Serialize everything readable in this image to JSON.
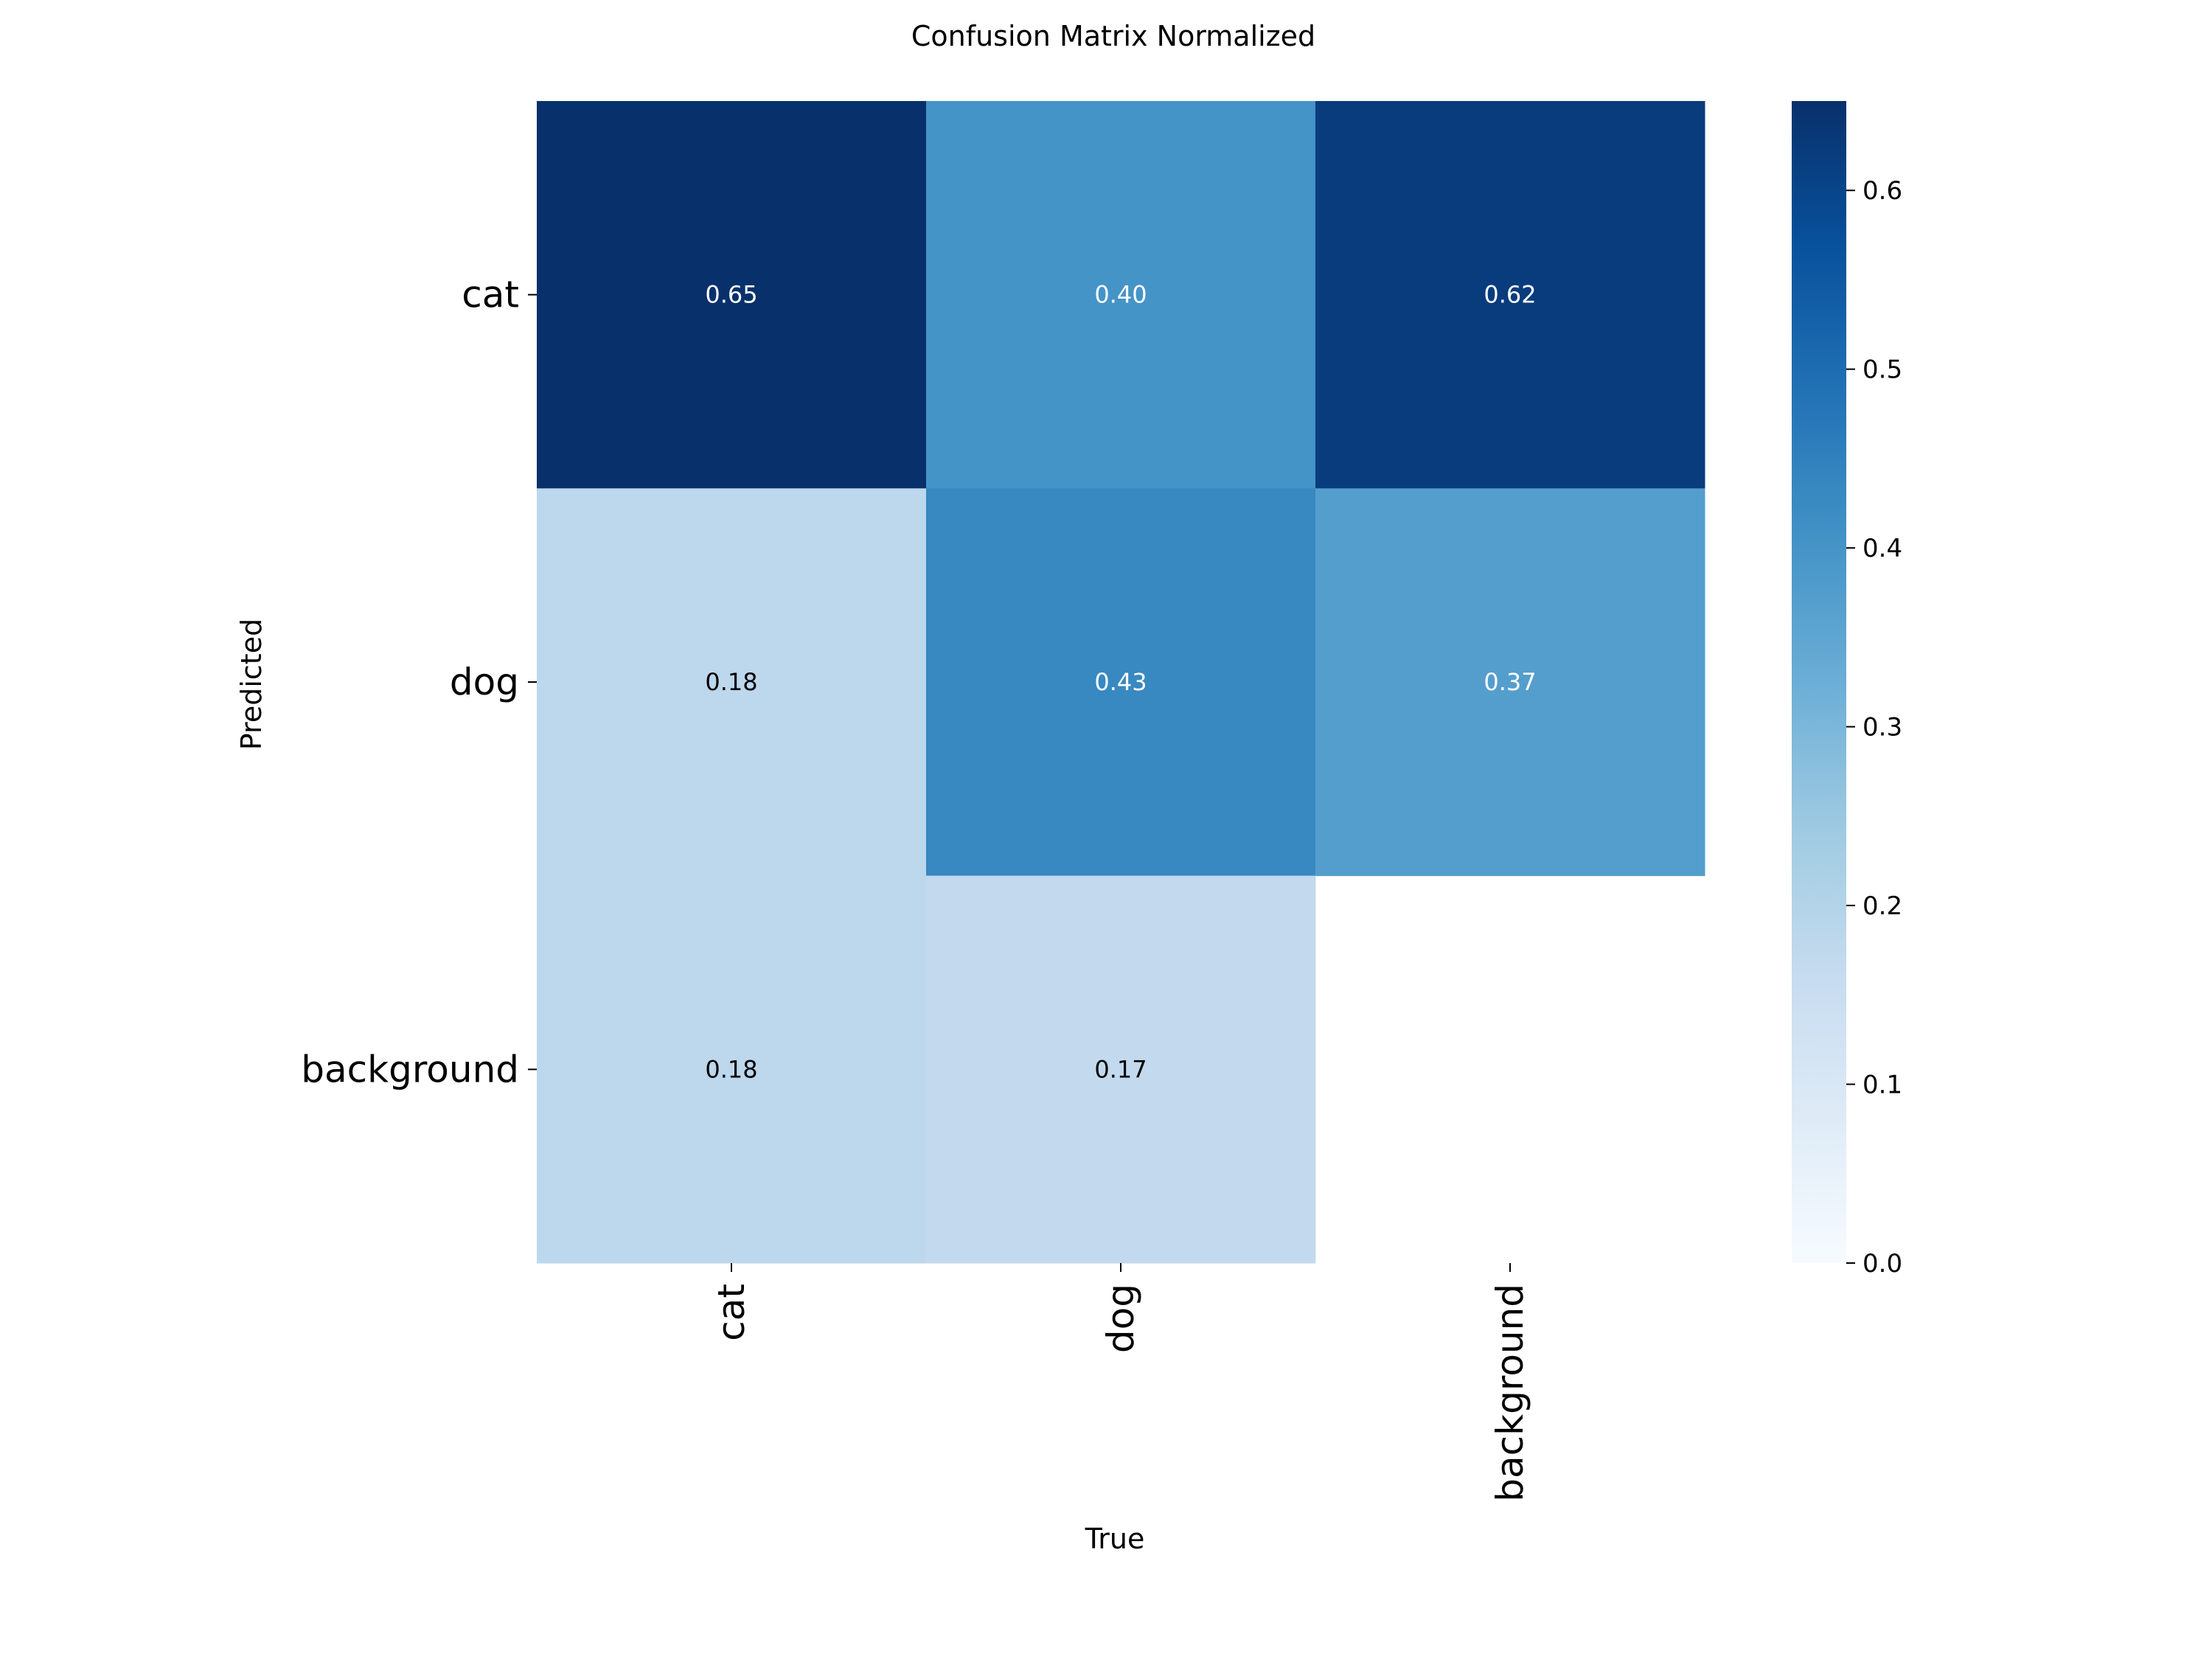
{
  "chart_data": {
    "type": "heatmap",
    "title": "Confusion Matrix Normalized",
    "xlabel": "True",
    "ylabel": "Predicted",
    "x_categories": [
      "cat",
      "dog",
      "background"
    ],
    "y_categories": [
      "cat",
      "dog",
      "background"
    ],
    "values": [
      [
        0.65,
        0.4,
        0.62
      ],
      [
        0.18,
        0.43,
        0.37
      ],
      [
        0.18,
        0.17,
        null
      ]
    ],
    "value_labels": [
      [
        "0.65",
        "0.40",
        "0.62"
      ],
      [
        "0.18",
        "0.43",
        "0.37"
      ],
      [
        "0.18",
        "0.17",
        ""
      ]
    ],
    "colormap": "Blues",
    "colorbar": {
      "range": [
        0,
        0.65
      ],
      "ticks": [
        0.0,
        0.1,
        0.2,
        0.3,
        0.4,
        0.5,
        0.6
      ],
      "tick_labels": [
        "0.0",
        "0.1",
        "0.2",
        "0.3",
        "0.4",
        "0.5",
        "0.6"
      ]
    },
    "grid": false,
    "legend": "colorbar-right"
  }
}
